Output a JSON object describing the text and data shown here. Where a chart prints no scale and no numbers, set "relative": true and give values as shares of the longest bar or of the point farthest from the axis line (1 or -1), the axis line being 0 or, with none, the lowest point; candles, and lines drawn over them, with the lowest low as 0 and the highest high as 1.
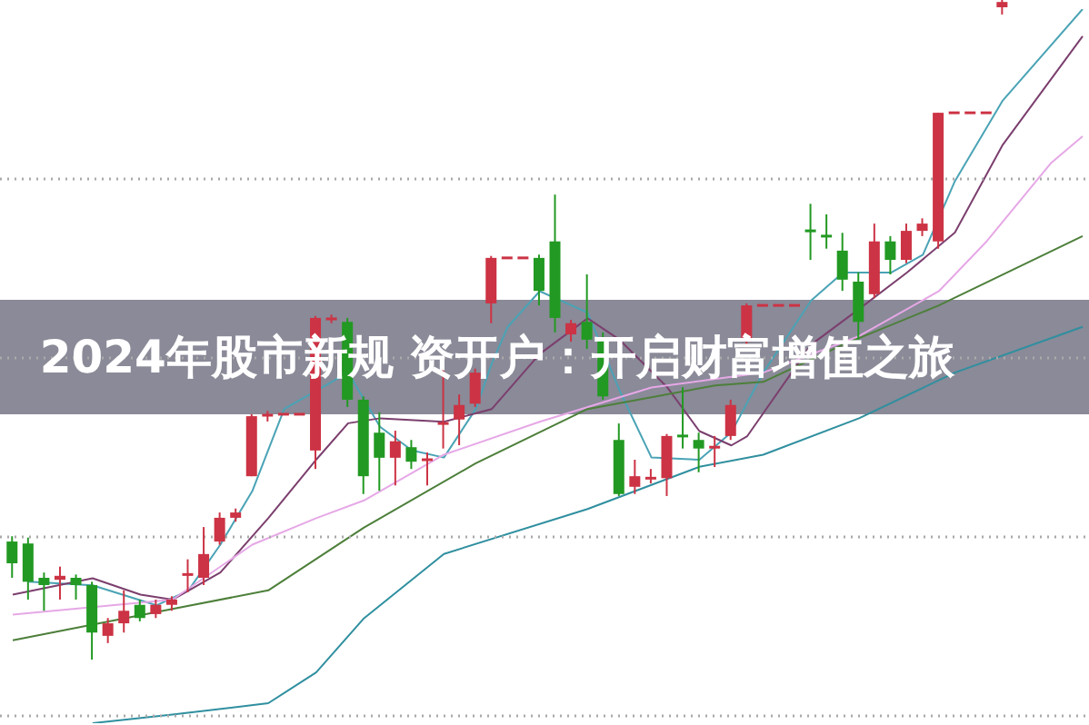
{
  "chart_data": [
    {
      "type": "candlestick",
      "title": "2024年股市新规 资开户：开启财富增值之旅",
      "relative": true,
      "grid": true,
      "categories": [
        null,
        null,
        null,
        null,
        null,
        null,
        null,
        null,
        null,
        null,
        null,
        null,
        null,
        null,
        null,
        null,
        null,
        null,
        null,
        null,
        null,
        null,
        null,
        null,
        null,
        null,
        null,
        null,
        null,
        null,
        null,
        null,
        null,
        null,
        null,
        null,
        null,
        null,
        null,
        null,
        null,
        null,
        null,
        null,
        null,
        null,
        null,
        null,
        null,
        null,
        null,
        null,
        null,
        null,
        null,
        null,
        null,
        null,
        null,
        null,
        null,
        null,
        null
      ],
      "ohlc": [
        [
          0.179,
          0.187,
          0.124,
          0.146
        ],
        [
          0.176,
          0.185,
          0.091,
          0.118
        ],
        [
          0.124,
          0.132,
          0.074,
          0.113
        ],
        [
          0.121,
          0.141,
          0.091,
          0.127
        ],
        [
          0.124,
          0.129,
          0.091,
          0.113
        ],
        [
          0.113,
          0.118,
          0,
          0.041
        ],
        [
          0.036,
          0.063,
          0.025,
          0.055
        ],
        [
          0.055,
          0.105,
          0.041,
          0.074
        ],
        [
          0.083,
          0.091,
          0.058,
          0.063
        ],
        [
          0.069,
          0.091,
          0.063,
          0.083
        ],
        [
          0.083,
          0.096,
          0.074,
          0.091
        ],
        [
          0.129,
          0.152,
          0.102,
          0.129
        ],
        [
          0.124,
          0.201,
          0.113,
          0.16
        ],
        [
          0.179,
          0.223,
          0.174,
          0.215
        ],
        [
          0.215,
          0.229,
          0.209,
          0.223
        ],
        [
          0.278,
          0.372,
          0.278,
          0.369
        ],
        [
          0.369,
          0.377,
          0.361,
          0.372
        ],
        [
          0.372,
          0.372,
          0.372,
          0.372
        ],
        [
          0.372,
          0.372,
          0.372,
          0.372
        ],
        [
          0.317,
          0.521,
          0.289,
          0.518
        ],
        [
          0.515,
          0.523,
          0.51,
          0.518
        ],
        [
          0.512,
          0.518,
          0.383,
          0.394
        ],
        [
          0.394,
          0.399,
          0.251,
          0.278
        ],
        [
          0.344,
          0.375,
          0.256,
          0.306
        ],
        [
          0.306,
          0.347,
          0.264,
          0.331
        ],
        [
          0.322,
          0.333,
          0.289,
          0.3
        ],
        [
          0.303,
          0.314,
          0.264,
          0.303
        ],
        [
          0.358,
          0.441,
          0.32,
          0.358
        ],
        [
          0.364,
          0.402,
          0.325,
          0.386
        ],
        [
          0.388,
          0.441,
          0.383,
          0.435
        ],
        [
          0.54,
          0.612,
          0.51,
          0.609
        ],
        [
          0.609,
          0.609,
          0.609,
          0.609
        ],
        [
          0.609,
          0.609,
          0.609,
          0.609
        ],
        [
          0.609,
          0.614,
          0.537,
          0.559
        ],
        [
          0.634,
          0.705,
          0.496,
          0.518
        ],
        [
          0.493,
          0.515,
          0.482,
          0.51
        ],
        [
          0.512,
          0.584,
          0.471,
          0.485
        ],
        [
          0.485,
          0.496,
          0.394,
          0.399
        ],
        [
          0.333,
          0.358,
          0.248,
          0.251
        ],
        [
          0.262,
          0.303,
          0.251,
          0.278
        ],
        [
          0.275,
          0.289,
          0.267,
          0.275
        ],
        [
          0.275,
          0.342,
          0.248,
          0.339
        ],
        [
          0.339,
          0.413,
          0.32,
          0.339
        ],
        [
          0.333,
          0.344,
          0.284,
          0.32
        ],
        [
          0.322,
          0.339,
          0.292,
          0.322
        ],
        [
          0.339,
          0.394,
          0.333,
          0.386
        ],
        [
          0.482,
          0.54,
          0.477,
          0.537
        ],
        [
          0.537,
          0.537,
          0.537,
          0.537
        ],
        [
          0.537,
          0.537,
          0.537,
          0.537
        ],
        [
          0.537,
          0.537,
          0.537,
          0.537
        ],
        [
          0.65,
          0.691,
          0.606,
          0.65
        ],
        [
          0.642,
          0.675,
          0.623,
          0.642
        ],
        [
          0.62,
          0.647,
          0.559,
          0.576
        ],
        [
          0.573,
          0.587,
          0.485,
          0.512
        ],
        [
          0.554,
          0.661,
          0.548,
          0.634
        ],
        [
          0.634,
          0.642,
          0.584,
          0.606
        ],
        [
          0.606,
          0.661,
          0.601,
          0.65
        ],
        [
          0.65,
          0.669,
          0.642,
          0.661
        ],
        [
          0.634,
          0.829,
          0.623,
          0.829
        ],
        [
          0.829,
          0.829,
          0.829,
          0.829
        ],
        [
          0.829,
          0.829,
          0.829,
          0.829
        ],
        [
          0.829,
          0.829,
          0.829,
          0.829
        ],
        [
          0.989,
          1,
          0.978,
          0.997
        ]
      ],
      "colors": [
        "#229922",
        "#229922",
        "#229922",
        "#cc3344",
        "#229922",
        "#229922",
        "#cc3344",
        "#cc3344",
        "#229922",
        "#cc3344",
        "#cc3344",
        "#cc3344",
        "#cc3344",
        "#cc3344",
        "#cc3344",
        "#cc3344",
        "#cc3344",
        "#cc3344",
        "#cc3344",
        "#cc3344",
        "#cc3344",
        "#229922",
        "#229922",
        "#229922",
        "#cc3344",
        "#229922",
        "#cc3344",
        "#cc3344",
        "#cc3344",
        "#cc3344",
        "#cc3344",
        "#cc3344",
        "#cc3344",
        "#229922",
        "#229922",
        "#cc3344",
        "#229922",
        "#229922",
        "#229922",
        "#cc3344",
        "#cc3344",
        "#cc3344",
        "#229922",
        "#229922",
        "#cc3344",
        "#cc3344",
        "#cc3344",
        "#cc3344",
        "#cc3344",
        "#cc3344",
        "#229922",
        "#229922",
        "#229922",
        "#229922",
        "#cc3344",
        "#229922",
        "#cc3344",
        "#cc3344",
        "#cc3344",
        "#cc3344",
        "#cc3344",
        "#cc3344",
        "#cc3344"
      ]
    },
    {
      "type": "line",
      "relative": true,
      "categories": [
        null,
        null,
        null,
        null,
        null,
        null,
        null,
        null,
        null,
        null,
        null,
        null,
        null,
        null,
        null,
        null,
        null,
        null,
        null,
        null,
        null,
        null,
        null,
        null,
        null,
        null,
        null,
        null,
        null,
        null,
        null,
        null,
        null,
        null,
        null,
        null,
        null,
        null,
        null,
        null,
        null,
        null,
        null,
        null,
        null,
        null,
        null,
        null,
        null,
        null,
        null,
        null,
        null,
        null,
        null,
        null,
        null,
        null,
        null,
        null,
        null,
        null,
        null,
        null,
        null,
        null,
        null,
        null
      ],
      "series": [
        {
          "color": "#4aa3b5",
          "values": [
            null,
            0.198,
            null,
            null,
            null,
            0.193,
            null,
            null,
            null,
            0.165,
            null,
            0.186,
            null,
            0.25,
            null,
            0.325,
            null,
            0.44,
            null,
            null,
            null,
            0.491,
            null,
            0.415,
            null,
            0.382,
            null,
            0.372,
            null,
            0.44,
            0.504,
            0.555,
            null,
            0.605,
            null,
            null,
            0.575,
            null,
            0.466,
            null,
            0.372,
            null,
            null,
            0.369,
            null,
            0.407,
            null,
            0.491,
            null,
            null,
            0.592,
            null,
            0.631,
            null,
            null,
            0.631,
            null,
            0.656,
            null,
            0.759,
            null,
            null,
            0.872,
            null,
            null,
            null,
            null,
            1
          ]
        },
        {
          "color": "#7b3f6e",
          "values": [
            0.18,
            null,
            null,
            null,
            null,
            0.203,
            null,
            null,
            0.18,
            null,
            0.173,
            null,
            null,
            0.211,
            null,
            null,
            0.287,
            null,
            null,
            0.369,
            null,
            0.42,
            null,
            0.427,
            null,
            null,
            null,
            0.422,
            null,
            null,
            0.44,
            null,
            null,
            0.517,
            null,
            null,
            0.567,
            null,
            0.537,
            null,
            null,
            0.47,
            null,
            0.409,
            null,
            0.389,
            0.402,
            null,
            null,
            null,
            0.53,
            null,
            null,
            0.58,
            null,
            null,
            0.631,
            null,
            null,
            0.687,
            null,
            null,
            0.81,
            null,
            null,
            null,
            null,
            0.962
          ]
        },
        {
          "color": "#e6a8e6",
          "values": [
            0.152,
            null,
            null,
            null,
            null,
            null,
            null,
            null,
            null,
            null,
            0.173,
            null,
            null,
            null,
            null,
            0.25,
            null,
            null,
            null,
            0.287,
            null,
            null,
            0.312,
            null,
            null,
            null,
            null,
            0.376,
            null,
            null,
            null,
            null,
            null,
            0.422,
            null,
            null,
            null,
            null,
            null,
            null,
            0.47,
            null,
            null,
            null,
            null,
            null,
            null,
            0.491,
            null,
            null,
            null,
            null,
            null,
            0.542,
            null,
            null,
            null,
            null,
            0.605,
            null,
            null,
            0.675,
            null,
            null,
            null,
            0.784,
            null,
            0.822
          ]
        },
        {
          "color": "#4d7f3a",
          "values": [
            0.116,
            null,
            null,
            null,
            null,
            null,
            null,
            null,
            null,
            null,
            0.16,
            null,
            null,
            null,
            null,
            null,
            0.186,
            null,
            null,
            null,
            null,
            null,
            0.274,
            null,
            null,
            null,
            null,
            null,
            null,
            0.364,
            null,
            null,
            null,
            null,
            null,
            null,
            0.44,
            null,
            null,
            null,
            null,
            null,
            null,
            null,
            0.473,
            null,
            null,
            0.478,
            null,
            null,
            null,
            null,
            0.53,
            null,
            null,
            null,
            null,
            null,
            0.585,
            null,
            null,
            null,
            null,
            null,
            null,
            null,
            null,
            0.682
          ]
        },
        {
          "color": "#2f8f9f",
          "values": [
            null,
            null,
            null,
            null,
            null,
            0,
            null,
            null,
            null,
            null,
            0.012,
            null,
            null,
            null,
            null,
            null,
            0.028,
            null,
            null,
            0.071,
            null,
            null,
            0.147,
            null,
            null,
            null,
            null,
            0.237,
            null,
            null,
            null,
            null,
            null,
            null,
            null,
            null,
            0.3,
            null,
            null,
            null,
            null,
            null,
            null,
            0.359,
            null,
            null,
            null,
            0.376,
            null,
            null,
            null,
            null,
            null,
            0.427,
            null,
            null,
            null,
            null,
            null,
            0.491,
            null,
            null,
            null,
            null,
            null,
            null,
            null,
            0.555
          ]
        }
      ]
    }
  ]
}
